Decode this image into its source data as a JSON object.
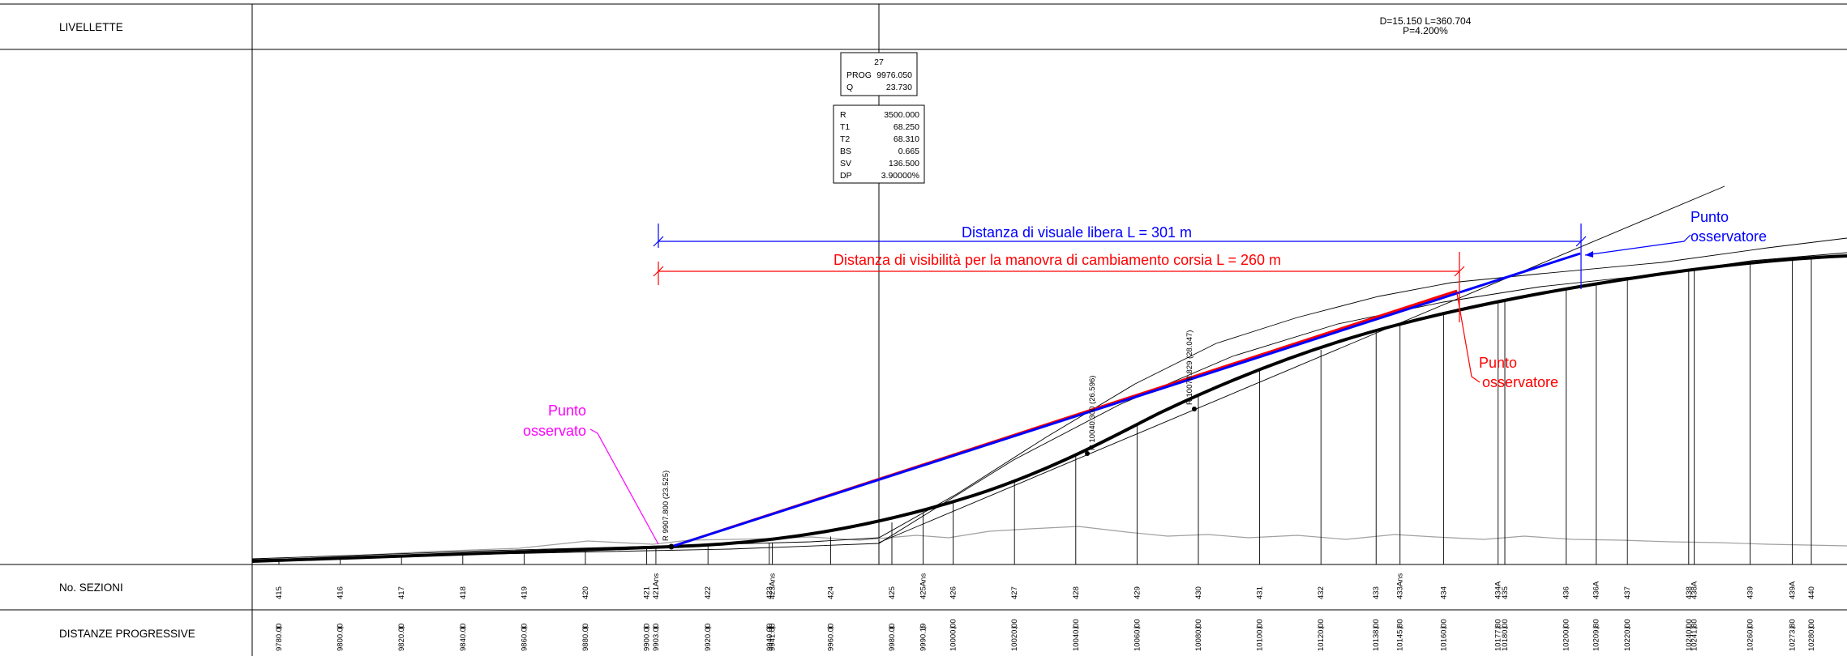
{
  "rows": {
    "livellette": "LIVELLETTE",
    "sezioni": "No. SEZIONI",
    "distanze": "DISTANZE PROGRESSIVE"
  },
  "grade": {
    "line1": "D=15.150 L=360.704",
    "line2": "P=4.200%"
  },
  "vertex_box": {
    "number": "27",
    "prog_label": "PROG",
    "prog_value": "9976.050",
    "q_label": "Q",
    "q_value": "23.730"
  },
  "curve_box": [
    {
      "k": "R",
      "v": "3500.000"
    },
    {
      "k": "T1",
      "v": "68.250"
    },
    {
      "k": "T2",
      "v": "68.310"
    },
    {
      "k": "BS",
      "v": "0.665"
    },
    {
      "k": "SV",
      "v": "136.500"
    },
    {
      "k": "DP",
      "v": "3.90000%"
    }
  ],
  "annotations": {
    "blue_dim": "Distanza di visuale libera L = 301 m",
    "red_dim": "Distanza di visibilità per la manovra di cambiamento corsia L = 260 m",
    "blue_observer_1": "Punto",
    "blue_observer_2": "osservatore",
    "red_observer_1": "Punto",
    "red_observer_2": "osservatore",
    "observed_1": "Punto",
    "observed_2": "osservato"
  },
  "vertex_labels": [
    {
      "text": "R  9907.800  (23.525)"
    },
    {
      "text": "R  10040.300  (26.596)"
    },
    {
      "text": "R  10078.829  (28.047)"
    }
  ],
  "sections": [
    {
      "n": "415",
      "d": "9780.00"
    },
    {
      "n": "416",
      "d": "9800.00"
    },
    {
      "n": "417",
      "d": "9820.00"
    },
    {
      "n": "418",
      "d": "9840.00"
    },
    {
      "n": "419",
      "d": "9860.00"
    },
    {
      "n": "420",
      "d": "9880.00"
    },
    {
      "n": "421",
      "d": "9900.00"
    },
    {
      "n": "421Ans",
      "d": "9903.00"
    },
    {
      "n": "422",
      "d": "9920.00"
    },
    {
      "n": "423",
      "d": "9940.00"
    },
    {
      "n": "423Ans",
      "d": "9941.00"
    },
    {
      "n": "424",
      "d": "9960.00"
    },
    {
      "n": "425",
      "d": "9980.00"
    },
    {
      "n": "425Ans",
      "d": "9990.19"
    },
    {
      "n": "426",
      "d": "10000.00"
    },
    {
      "n": "427",
      "d": "10020.00"
    },
    {
      "n": "428",
      "d": "10040.00"
    },
    {
      "n": "429",
      "d": "10060.00"
    },
    {
      "n": "430",
      "d": "10080.00"
    },
    {
      "n": "431",
      "d": "10100.00"
    },
    {
      "n": "432",
      "d": "10120.00"
    },
    {
      "n": "433",
      "d": "10138.00"
    },
    {
      "n": "433Ans",
      "d": "10145.80"
    },
    {
      "n": "434",
      "d": "10160.00"
    },
    {
      "n": "434A",
      "d": "10177.80"
    },
    {
      "n": "435",
      "d": "10180.00"
    },
    {
      "n": "436",
      "d": "10200.00"
    },
    {
      "n": "436A",
      "d": "10209.80"
    },
    {
      "n": "437",
      "d": "10220.00"
    },
    {
      "n": "438",
      "d": "10240.00"
    },
    {
      "n": "438A",
      "d": "10241.80"
    },
    {
      "n": "439",
      "d": "10260.00"
    },
    {
      "n": "439A",
      "d": "10273.80"
    },
    {
      "n": "440",
      "d": "10280.00"
    }
  ],
  "colors": {
    "blue": "#0000ff",
    "red": "#ff0000",
    "magenta": "#ff00ff",
    "profile": "#000000",
    "terrain": "#a0a0a0"
  }
}
